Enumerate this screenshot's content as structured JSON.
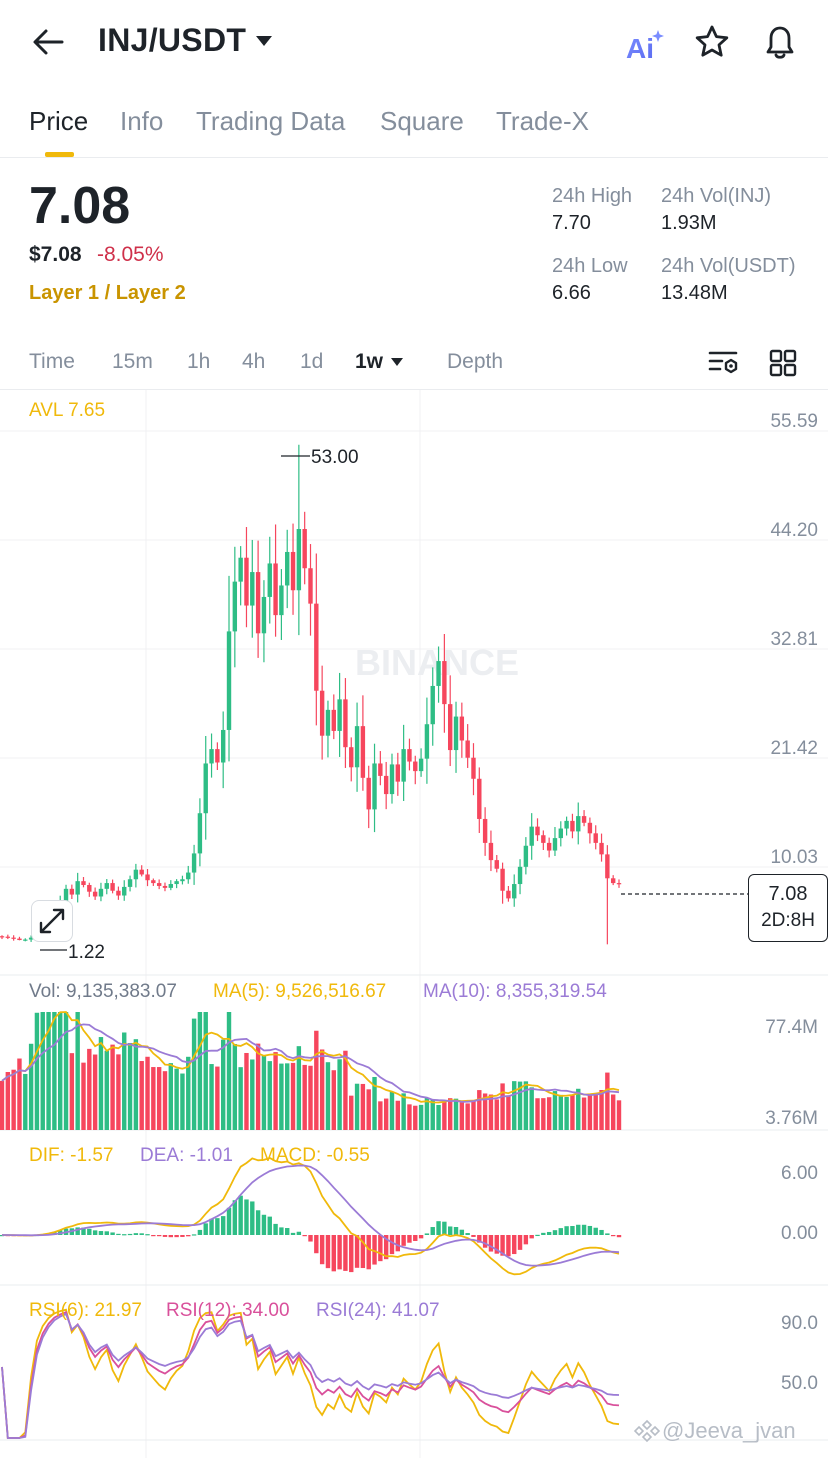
{
  "header": {
    "pair": "INJ/USDT",
    "icons": {
      "back": "arrow-left-icon",
      "ai": "ai-sparkle-icon",
      "favorite": "star-outline-icon",
      "alert": "bell-icon"
    }
  },
  "tabs": [
    "Price",
    "Info",
    "Trading Data",
    "Square",
    "Trade-X"
  ],
  "ticker": {
    "last_price": "7.08",
    "usd_price": "$7.08",
    "change": "-8.05%",
    "category": "Layer 1 / Layer 2",
    "high_label": "24h High",
    "high_value": "7.70",
    "vol_base_label": "24h Vol(INJ)",
    "vol_base_value": "1.93M",
    "low_label": "24h Low",
    "low_value": "6.66",
    "vol_quote_label": "24h Vol(USDT)",
    "vol_quote_value": "13.48M"
  },
  "intervals": [
    "Time",
    "15m",
    "1h",
    "4h",
    "1d",
    "1w",
    "Depth"
  ],
  "active_interval": "1w",
  "colors": {
    "up": "#2ebd85",
    "down": "#f6465d",
    "accent": "#f0b90b",
    "ma10": "#9b7bd6",
    "rsi12": "#d9509b",
    "text_muted": "#848e9c"
  },
  "chart_data": {
    "type": "candlestick",
    "avl_label": "AVL 7.65",
    "price_axis": [
      "55.59",
      "44.20",
      "32.81",
      "21.42",
      "10.03"
    ],
    "ylim": [
      -1.36,
      55.59
    ],
    "max_label": "53.00",
    "min_label": "1.22",
    "last_price": "7.08",
    "countdown": "2D:8H",
    "watermark": "BINANCE",
    "close_series": [
      1.6,
      1.5,
      1.4,
      1.25,
      1.3,
      1.5,
      1.9,
      2.4,
      3.1,
      4.1,
      5.2,
      6.6,
      6.0,
      7.4,
      7.0,
      6.3,
      5.8,
      6.6,
      7.2,
      6.4,
      5.9,
      6.8,
      7.6,
      8.6,
      8.1,
      7.5,
      7.2,
      6.9,
      6.7,
      7.1,
      7.4,
      7.6,
      8.3,
      10.3,
      14.5,
      19.7,
      21.2,
      19.8,
      23.2,
      33.5,
      38.7,
      41.2,
      36.2,
      39.7,
      33.3,
      37.1,
      40.6,
      35.2,
      38.3,
      41.8,
      37.8,
      44.2,
      40.1,
      36.4,
      27.3,
      22.6,
      25.3,
      23.1,
      26.4,
      21.4,
      19.3,
      23.6,
      18.2,
      14.9,
      19.7,
      18.4,
      16.5,
      19.6,
      17.8,
      21.2,
      19.9,
      18.9,
      20.2,
      23.8,
      27.8,
      30.4,
      25.9,
      21.1,
      24.6,
      22.1,
      20.3,
      18.1,
      13.9,
      11.4,
      9.6,
      8.7,
      6.4,
      5.6,
      7.1,
      8.9,
      11.1,
      13.1,
      12.2,
      11.4,
      10.6,
      11.9,
      12.9,
      13.7,
      12.6,
      14.2,
      13.5,
      12.4,
      11.4,
      10.2,
      7.7,
      7.2,
      7.08
    ],
    "volume_axis": [
      "77.4M",
      "3.76M"
    ],
    "volume_label": "Vol: 9,135,383.07",
    "vol_ma5_label": "MA(5): 9,526,516.67",
    "vol_ma10_label": "MA(10): 8,355,319.54",
    "macd_axis": [
      "6.00",
      "0.00"
    ],
    "macd_dif_label": "DIF: -1.57",
    "macd_dea_label": "DEA: -1.01",
    "macd_label": "MACD: -0.55",
    "rsi_axis": [
      "90.0",
      "50.0"
    ],
    "rsi6_label": "RSI(6): 21.97",
    "rsi12_label": "RSI(12): 34.00",
    "rsi24_label": "RSI(24): 41.07"
  },
  "watermark_user": "@Jeeva_jvan"
}
